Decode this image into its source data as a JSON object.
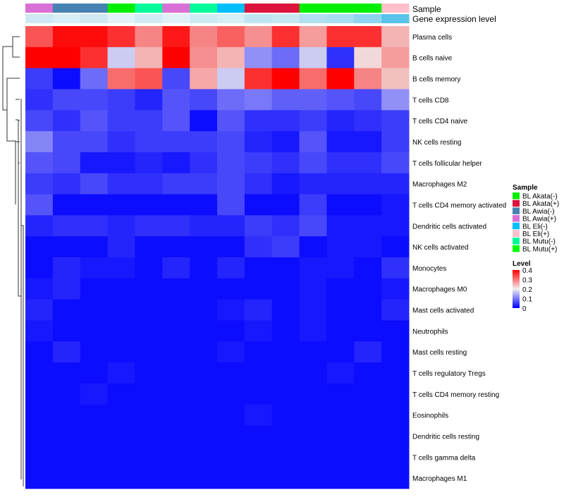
{
  "chart_data": {
    "type": "heatmap",
    "annotation_labels": {
      "sample": "Sample",
      "expression": "Gene expression level"
    },
    "legend_sample": {
      "title": "Sample",
      "entries": [
        {
          "label": "BL Akata(-)",
          "color": "#00ee00"
        },
        {
          "label": "BL Akata(+)",
          "color": "#dc143c"
        },
        {
          "label": "BL Awia(-)",
          "color": "#4682b4"
        },
        {
          "label": "BL Awia(+)",
          "color": "#da70d6"
        },
        {
          "label": "BL Eli(-)",
          "color": "#00bfff"
        },
        {
          "label": "BL Eli(+)",
          "color": "#ffc0cb"
        },
        {
          "label": "BL Mutu(-)",
          "color": "#00fa9a"
        },
        {
          "label": "BL Mutu(+)",
          "color": "#00ff00"
        }
      ]
    },
    "legend_level": {
      "title": "Level",
      "ticks": [
        "0.4",
        "0.3",
        "0.2",
        "0.1",
        "0"
      ],
      "range": [
        0,
        0.4
      ],
      "colors": {
        "low": "#0000ff",
        "mid": "#f0f0f0",
        "high": "#ff0000"
      }
    },
    "columns": [
      {
        "sample": "BL Awia(+)",
        "expression": "#cde8f2"
      },
      {
        "sample": "BL Awia(-)",
        "expression": "#d8eef6"
      },
      {
        "sample": "BL Awia(-)",
        "expression": "#cfe9f3"
      },
      {
        "sample": "BL Akata(-)",
        "expression": "#e2f2f8"
      },
      {
        "sample": "BL Mutu(-)",
        "expression": "#d2eaf4"
      },
      {
        "sample": "BL Awia(+)",
        "expression": "#dff1f7"
      },
      {
        "sample": "BL Mutu(-)",
        "expression": "#ceebf4"
      },
      {
        "sample": "BL Eli(-)",
        "expression": "#d6eef6"
      },
      {
        "sample": "BL Akata(+)",
        "expression": "#bfe5f2"
      },
      {
        "sample": "BL Akata(+)",
        "expression": "#c6e8f3"
      },
      {
        "sample": "BL Akata(-)",
        "expression": "#b2dff0"
      },
      {
        "sample": "BL Akata(-)",
        "expression": "#a8dcef"
      },
      {
        "sample": "BL Akata(-)",
        "expression": "#8fd4ee"
      },
      {
        "sample": "BL Eli(+)",
        "expression": "#5ac3ec"
      }
    ],
    "rows": [
      "Plasma cells",
      "B cells naive",
      "B cells memory",
      "T cells CD8",
      "T cells CD4 naive",
      "NK cells resting",
      "T cells follicular helper",
      "Macrophages M2",
      "T cells CD4 memory activated",
      "Dendritic cells activated",
      "NK cells activated",
      "Monocytes",
      "Macrophages M0",
      "Mast cells activated",
      "Neutrophils",
      "Mast cells resting",
      "T cells regulatory  Tregs",
      "T cells CD4 memory resting",
      "Eosinophils",
      "Dendritic cells resting",
      "T cells gamma delta",
      "Macrophages M1"
    ],
    "values": [
      [
        0.33,
        0.39,
        0.39,
        0.36,
        0.29,
        0.38,
        0.29,
        0.32,
        0.28,
        0.36,
        0.27,
        0.36,
        0.36,
        0.25
      ],
      [
        0.4,
        0.4,
        0.36,
        0.17,
        0.25,
        0.4,
        0.28,
        0.25,
        0.12,
        0.09,
        0.17,
        0.04,
        0.22,
        0.27
      ],
      [
        0.05,
        0.01,
        0.09,
        0.31,
        0.33,
        0.06,
        0.26,
        0.17,
        0.36,
        0.4,
        0.31,
        0.4,
        0.29,
        0.24
      ],
      [
        0.04,
        0.06,
        0.06,
        0.05,
        0.03,
        0.07,
        0.06,
        0.09,
        0.1,
        0.08,
        0.08,
        0.07,
        0.06,
        0.12
      ],
      [
        0.06,
        0.04,
        0.07,
        0.05,
        0.05,
        0.07,
        0.01,
        0.07,
        0.04,
        0.04,
        0.05,
        0.03,
        0.04,
        0.05
      ],
      [
        0.11,
        0.06,
        0.06,
        0.04,
        0.05,
        0.05,
        0.05,
        0.06,
        0.03,
        0.02,
        0.07,
        0.02,
        0.02,
        0.05
      ],
      [
        0.07,
        0.06,
        0.02,
        0.02,
        0.03,
        0.02,
        0.04,
        0.06,
        0.05,
        0.04,
        0.06,
        0.04,
        0.04,
        0.06
      ],
      [
        0.05,
        0.04,
        0.06,
        0.04,
        0.04,
        0.05,
        0.05,
        0.06,
        0.04,
        0.02,
        0.03,
        0.03,
        0.03,
        0.03
      ],
      [
        0.07,
        0.01,
        0.01,
        0.01,
        0.01,
        0.01,
        0.01,
        0.06,
        0.01,
        0.01,
        0.05,
        0.01,
        0.01,
        0.02
      ],
      [
        0.03,
        0.04,
        0.04,
        0.03,
        0.04,
        0.04,
        0.03,
        0.03,
        0.05,
        0.04,
        0.06,
        0.02,
        0.02,
        0.02
      ],
      [
        0.01,
        0.01,
        0.01,
        0.03,
        0.01,
        0.01,
        0.01,
        0.01,
        0.04,
        0.05,
        0.01,
        0.02,
        0.02,
        0.01
      ],
      [
        0.01,
        0.03,
        0.02,
        0.02,
        0.01,
        0.03,
        0.01,
        0.03,
        0.01,
        0.01,
        0.02,
        0.02,
        0.01,
        0.04
      ],
      [
        0.02,
        0.03,
        0.01,
        0.01,
        0.01,
        0.01,
        0.01,
        0.01,
        0.01,
        0.01,
        0.02,
        0.01,
        0.01,
        0.02
      ],
      [
        0.03,
        0.01,
        0.01,
        0.01,
        0.01,
        0.01,
        0.01,
        0.02,
        0.03,
        0.01,
        0.02,
        0.01,
        0.01,
        0.03
      ],
      [
        0.02,
        0.01,
        0.01,
        0.01,
        0.01,
        0.01,
        0.01,
        0.01,
        0.02,
        0.01,
        0.02,
        0.01,
        0.01,
        0.01
      ],
      [
        0.01,
        0.03,
        0.01,
        0.01,
        0.01,
        0.01,
        0.01,
        0.02,
        0.01,
        0.01,
        0.01,
        0.01,
        0.03,
        0.01
      ],
      [
        0.01,
        0.01,
        0.01,
        0.02,
        0.01,
        0.01,
        0.01,
        0.01,
        0.01,
        0.01,
        0.01,
        0.02,
        0.01,
        0.01
      ],
      [
        0.01,
        0.01,
        0.02,
        0.01,
        0.01,
        0.01,
        0.01,
        0.01,
        0.01,
        0.01,
        0.01,
        0.01,
        0.01,
        0.01
      ],
      [
        0.01,
        0.01,
        0.01,
        0.01,
        0.01,
        0.01,
        0.01,
        0.01,
        0.02,
        0.01,
        0.01,
        0.01,
        0.01,
        0.01
      ],
      [
        0.01,
        0.01,
        0.01,
        0.01,
        0.01,
        0.01,
        0.01,
        0.01,
        0.01,
        0.01,
        0.01,
        0.01,
        0.01,
        0.01
      ],
      [
        0.01,
        0.01,
        0.01,
        0.01,
        0.01,
        0.01,
        0.01,
        0.01,
        0.01,
        0.01,
        0.01,
        0.01,
        0.01,
        0.01
      ],
      [
        0.01,
        0.01,
        0.01,
        0.01,
        0.01,
        0.01,
        0.01,
        0.01,
        0.01,
        0.01,
        0.01,
        0.01,
        0.01,
        0.01
      ]
    ]
  }
}
